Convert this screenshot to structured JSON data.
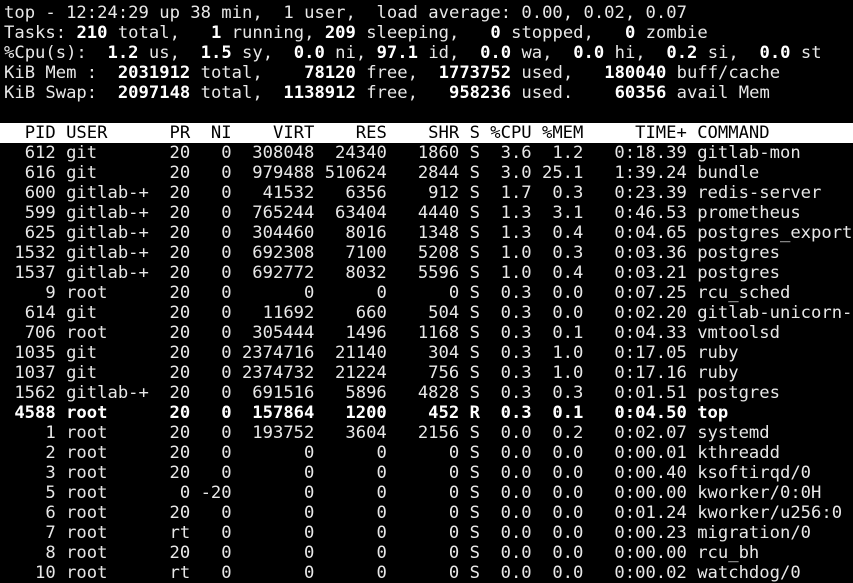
{
  "terminal": {
    "colors": {
      "background": "#000000",
      "text": "#e8e8e8",
      "bold_text": "#ffffff",
      "header_bar_background": "#ffffff",
      "header_bar_text": "#000000"
    },
    "summary_lines": [
      {
        "name": "uptime-line",
        "segments": [
          {
            "text": "top - 12:24:29 up 38 min,  1 user,  load average: 0.00, 0.02, 0.07",
            "bold": false
          }
        ]
      },
      {
        "name": "tasks-line",
        "segments": [
          {
            "text": "Tasks: ",
            "bold": false
          },
          {
            "text": "210",
            "bold": true
          },
          {
            "text": " total,   ",
            "bold": false
          },
          {
            "text": "1",
            "bold": true
          },
          {
            "text": " running, ",
            "bold": false
          },
          {
            "text": "209",
            "bold": true
          },
          {
            "text": " sleeping,   ",
            "bold": false
          },
          {
            "text": "0",
            "bold": true
          },
          {
            "text": " stopped,   ",
            "bold": false
          },
          {
            "text": "0",
            "bold": true
          },
          {
            "text": " zombie",
            "bold": false
          }
        ]
      },
      {
        "name": "cpu-line",
        "segments": [
          {
            "text": "%Cpu(s):  ",
            "bold": false
          },
          {
            "text": "1.2",
            "bold": true
          },
          {
            "text": " us,  ",
            "bold": false
          },
          {
            "text": "1.5",
            "bold": true
          },
          {
            "text": " sy,  ",
            "bold": false
          },
          {
            "text": "0.0",
            "bold": true
          },
          {
            "text": " ni, ",
            "bold": false
          },
          {
            "text": "97.1",
            "bold": true
          },
          {
            "text": " id,  ",
            "bold": false
          },
          {
            "text": "0.0",
            "bold": true
          },
          {
            "text": " wa,  ",
            "bold": false
          },
          {
            "text": "0.0",
            "bold": true
          },
          {
            "text": " hi,  ",
            "bold": false
          },
          {
            "text": "0.2",
            "bold": true
          },
          {
            "text": " si,  ",
            "bold": false
          },
          {
            "text": "0.0",
            "bold": true
          },
          {
            "text": " st",
            "bold": false
          }
        ]
      },
      {
        "name": "mem-line",
        "segments": [
          {
            "text": "KiB Mem :  ",
            "bold": false
          },
          {
            "text": "2031912",
            "bold": true
          },
          {
            "text": " total,    ",
            "bold": false
          },
          {
            "text": "78120",
            "bold": true
          },
          {
            "text": " free,  ",
            "bold": false
          },
          {
            "text": "1773752",
            "bold": true
          },
          {
            "text": " used,   ",
            "bold": false
          },
          {
            "text": "180040",
            "bold": true
          },
          {
            "text": " buff/cache",
            "bold": false
          }
        ]
      },
      {
        "name": "swap-line",
        "segments": [
          {
            "text": "KiB Swap:  ",
            "bold": false
          },
          {
            "text": "2097148",
            "bold": true
          },
          {
            "text": " total,  ",
            "bold": false
          },
          {
            "text": "1138912",
            "bold": true
          },
          {
            "text": " free,   ",
            "bold": false
          },
          {
            "text": "958236",
            "bold": true
          },
          {
            "text": " used.    ",
            "bold": false
          },
          {
            "text": "60356",
            "bold": true
          },
          {
            "text": " avail Mem",
            "bold": false
          }
        ]
      }
    ],
    "process_table": {
      "columns": [
        {
          "key": "pid",
          "label": "PID",
          "width": 5,
          "align": "right"
        },
        {
          "key": "user",
          "label": "USER",
          "width": 8,
          "align": "left"
        },
        {
          "key": "pr",
          "label": "PR",
          "width": 3,
          "align": "right"
        },
        {
          "key": "ni",
          "label": "NI",
          "width": 3,
          "align": "right"
        },
        {
          "key": "virt",
          "label": "VIRT",
          "width": 7,
          "align": "right"
        },
        {
          "key": "res",
          "label": "RES",
          "width": 6,
          "align": "right"
        },
        {
          "key": "shr",
          "label": "SHR",
          "width": 6,
          "align": "right"
        },
        {
          "key": "s",
          "label": "S",
          "width": 1,
          "align": "left"
        },
        {
          "key": "cpu",
          "label": "%CPU",
          "width": 4,
          "align": "right"
        },
        {
          "key": "mem",
          "label": "%MEM",
          "width": 4,
          "align": "right"
        },
        {
          "key": "time",
          "label": "TIME+",
          "width": 9,
          "align": "right"
        },
        {
          "key": "command",
          "label": "COMMAND",
          "width": 0,
          "align": "left"
        }
      ],
      "rows": [
        {
          "pid": "612",
          "user": "git",
          "pr": "20",
          "ni": "0",
          "virt": "308048",
          "res": "24340",
          "shr": "1860",
          "s": "S",
          "cpu": "3.6",
          "mem": "1.2",
          "time": "0:18.39",
          "command": "gitlab-mon",
          "bold": false
        },
        {
          "pid": "616",
          "user": "git",
          "pr": "20",
          "ni": "0",
          "virt": "979488",
          "res": "510624",
          "shr": "2844",
          "s": "S",
          "cpu": "3.0",
          "mem": "25.1",
          "time": "1:39.24",
          "command": "bundle",
          "bold": false
        },
        {
          "pid": "600",
          "user": "gitlab-+",
          "pr": "20",
          "ni": "0",
          "virt": "41532",
          "res": "6356",
          "shr": "912",
          "s": "S",
          "cpu": "1.7",
          "mem": "0.3",
          "time": "0:23.39",
          "command": "redis-server",
          "bold": false
        },
        {
          "pid": "599",
          "user": "gitlab-+",
          "pr": "20",
          "ni": "0",
          "virt": "765244",
          "res": "63404",
          "shr": "4440",
          "s": "S",
          "cpu": "1.3",
          "mem": "3.1",
          "time": "0:46.53",
          "command": "prometheus",
          "bold": false
        },
        {
          "pid": "625",
          "user": "gitlab-+",
          "pr": "20",
          "ni": "0",
          "virt": "304460",
          "res": "8016",
          "shr": "1348",
          "s": "S",
          "cpu": "1.3",
          "mem": "0.4",
          "time": "0:04.65",
          "command": "postgres_export",
          "bold": false
        },
        {
          "pid": "1532",
          "user": "gitlab-+",
          "pr": "20",
          "ni": "0",
          "virt": "692308",
          "res": "7100",
          "shr": "5208",
          "s": "S",
          "cpu": "1.0",
          "mem": "0.3",
          "time": "0:03.36",
          "command": "postgres",
          "bold": false
        },
        {
          "pid": "1537",
          "user": "gitlab-+",
          "pr": "20",
          "ni": "0",
          "virt": "692772",
          "res": "8032",
          "shr": "5596",
          "s": "S",
          "cpu": "1.0",
          "mem": "0.4",
          "time": "0:03.21",
          "command": "postgres",
          "bold": false
        },
        {
          "pid": "9",
          "user": "root",
          "pr": "20",
          "ni": "0",
          "virt": "0",
          "res": "0",
          "shr": "0",
          "s": "S",
          "cpu": "0.3",
          "mem": "0.0",
          "time": "0:07.25",
          "command": "rcu_sched",
          "bold": false
        },
        {
          "pid": "614",
          "user": "git",
          "pr": "20",
          "ni": "0",
          "virt": "11692",
          "res": "660",
          "shr": "504",
          "s": "S",
          "cpu": "0.3",
          "mem": "0.0",
          "time": "0:02.20",
          "command": "gitlab-unicorn-",
          "bold": false
        },
        {
          "pid": "706",
          "user": "root",
          "pr": "20",
          "ni": "0",
          "virt": "305444",
          "res": "1496",
          "shr": "1168",
          "s": "S",
          "cpu": "0.3",
          "mem": "0.1",
          "time": "0:04.33",
          "command": "vmtoolsd",
          "bold": false
        },
        {
          "pid": "1035",
          "user": "git",
          "pr": "20",
          "ni": "0",
          "virt": "2374716",
          "res": "21140",
          "shr": "304",
          "s": "S",
          "cpu": "0.3",
          "mem": "1.0",
          "time": "0:17.05",
          "command": "ruby",
          "bold": false
        },
        {
          "pid": "1037",
          "user": "git",
          "pr": "20",
          "ni": "0",
          "virt": "2374732",
          "res": "21224",
          "shr": "756",
          "s": "S",
          "cpu": "0.3",
          "mem": "1.0",
          "time": "0:17.16",
          "command": "ruby",
          "bold": false
        },
        {
          "pid": "1562",
          "user": "gitlab-+",
          "pr": "20",
          "ni": "0",
          "virt": "691516",
          "res": "5896",
          "shr": "4828",
          "s": "S",
          "cpu": "0.3",
          "mem": "0.3",
          "time": "0:01.51",
          "command": "postgres",
          "bold": false
        },
        {
          "pid": "4588",
          "user": "root",
          "pr": "20",
          "ni": "0",
          "virt": "157864",
          "res": "1200",
          "shr": "452",
          "s": "R",
          "cpu": "0.3",
          "mem": "0.1",
          "time": "0:04.50",
          "command": "top",
          "bold": true
        },
        {
          "pid": "1",
          "user": "root",
          "pr": "20",
          "ni": "0",
          "virt": "193752",
          "res": "3604",
          "shr": "2156",
          "s": "S",
          "cpu": "0.0",
          "mem": "0.2",
          "time": "0:02.07",
          "command": "systemd",
          "bold": false
        },
        {
          "pid": "2",
          "user": "root",
          "pr": "20",
          "ni": "0",
          "virt": "0",
          "res": "0",
          "shr": "0",
          "s": "S",
          "cpu": "0.0",
          "mem": "0.0",
          "time": "0:00.01",
          "command": "kthreadd",
          "bold": false
        },
        {
          "pid": "3",
          "user": "root",
          "pr": "20",
          "ni": "0",
          "virt": "0",
          "res": "0",
          "shr": "0",
          "s": "S",
          "cpu": "0.0",
          "mem": "0.0",
          "time": "0:00.40",
          "command": "ksoftirqd/0",
          "bold": false
        },
        {
          "pid": "5",
          "user": "root",
          "pr": "0",
          "ni": "-20",
          "virt": "0",
          "res": "0",
          "shr": "0",
          "s": "S",
          "cpu": "0.0",
          "mem": "0.0",
          "time": "0:00.00",
          "command": "kworker/0:0H",
          "bold": false
        },
        {
          "pid": "6",
          "user": "root",
          "pr": "20",
          "ni": "0",
          "virt": "0",
          "res": "0",
          "shr": "0",
          "s": "S",
          "cpu": "0.0",
          "mem": "0.0",
          "time": "0:01.24",
          "command": "kworker/u256:0",
          "bold": false
        },
        {
          "pid": "7",
          "user": "root",
          "pr": "rt",
          "ni": "0",
          "virt": "0",
          "res": "0",
          "shr": "0",
          "s": "S",
          "cpu": "0.0",
          "mem": "0.0",
          "time": "0:00.23",
          "command": "migration/0",
          "bold": false
        },
        {
          "pid": "8",
          "user": "root",
          "pr": "20",
          "ni": "0",
          "virt": "0",
          "res": "0",
          "shr": "0",
          "s": "S",
          "cpu": "0.0",
          "mem": "0.0",
          "time": "0:00.00",
          "command": "rcu_bh",
          "bold": false
        },
        {
          "pid": "10",
          "user": "root",
          "pr": "rt",
          "ni": "0",
          "virt": "0",
          "res": "0",
          "shr": "0",
          "s": "S",
          "cpu": "0.0",
          "mem": "0.0",
          "time": "0:00.02",
          "command": "watchdog/0",
          "bold": false
        }
      ]
    }
  }
}
